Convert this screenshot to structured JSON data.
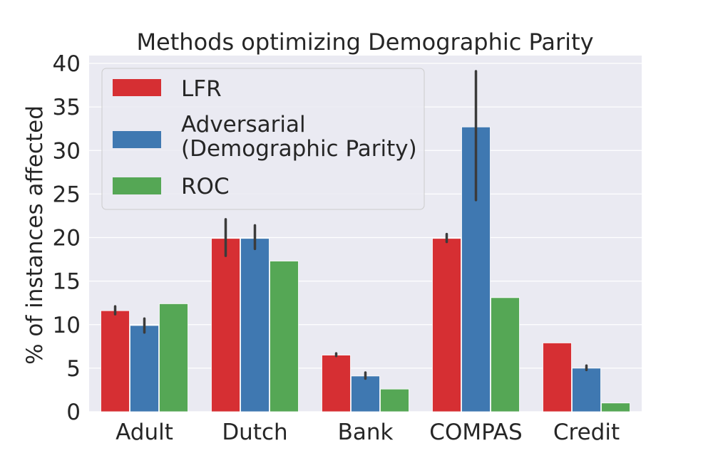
{
  "chart_data": {
    "type": "bar",
    "title": "Methods optimizing Demographic Parity",
    "xlabel": "",
    "ylabel": "% of instances affected",
    "categories": [
      "Adult",
      "Dutch",
      "Bank",
      "COMPAS",
      "Credit"
    ],
    "ylim": [
      0,
      40
    ],
    "yticks": [
      0,
      5,
      10,
      15,
      20,
      25,
      30,
      35,
      40
    ],
    "grid": true,
    "legend_position": "top-left",
    "series": [
      {
        "name": "LFR",
        "color": "#d62f33",
        "values": [
          11.6,
          19.9,
          6.5,
          19.9,
          7.9
        ],
        "error_low": [
          11.2,
          17.9,
          6.4,
          19.5,
          null
        ],
        "error_high": [
          12.1,
          22.1,
          6.7,
          20.4,
          null
        ]
      },
      {
        "name": "Adversarial\n(Demographic Parity)",
        "color": "#3f78b1",
        "values": [
          9.9,
          19.9,
          4.1,
          32.7,
          5.0
        ],
        "error_low": [
          9.1,
          18.7,
          3.8,
          24.3,
          4.8
        ],
        "error_high": [
          10.7,
          21.4,
          4.5,
          39.1,
          5.3
        ]
      },
      {
        "name": "ROC",
        "color": "#55a755",
        "values": [
          12.4,
          17.3,
          2.6,
          13.1,
          1.0
        ],
        "error_low": [
          null,
          null,
          null,
          null,
          null
        ],
        "error_high": [
          null,
          null,
          null,
          null,
          null
        ]
      }
    ]
  }
}
